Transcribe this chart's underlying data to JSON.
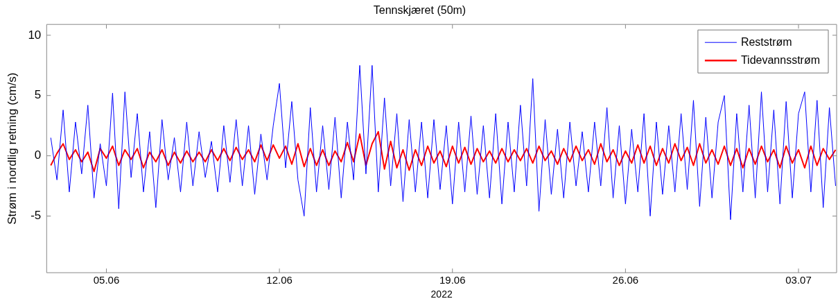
{
  "chart_data": {
    "type": "line",
    "title": "Tennskjæret (50m)",
    "xlabel": "2022",
    "ylabel": "Strøm i nordlig retning (cm/s)",
    "xlim": [
      "2022-06-02T14:00",
      "2022-07-04T13:00"
    ],
    "xticks": [
      {
        "value": "2022-06-05",
        "label": "05.06"
      },
      {
        "value": "2022-06-12",
        "label": "12.06"
      },
      {
        "value": "2022-06-19",
        "label": "19.06"
      },
      {
        "value": "2022-06-26",
        "label": "26.06"
      },
      {
        "value": "2022-07-03",
        "label": "03.07"
      }
    ],
    "ylim": [
      -9.7,
      10.9
    ],
    "yticks": [
      -5,
      0,
      5,
      10
    ],
    "grid": false,
    "legend": "top right",
    "x": [
      "2022-06-02T18:00",
      "2022-06-03T00:00",
      "2022-06-03T06:00",
      "2022-06-03T12:00",
      "2022-06-03T18:00",
      "2022-06-04T00:00",
      "2022-06-04T06:00",
      "2022-06-04T12:00",
      "2022-06-04T18:00",
      "2022-06-05T00:00",
      "2022-06-05T06:00",
      "2022-06-05T12:00",
      "2022-06-05T18:00",
      "2022-06-06T00:00",
      "2022-06-06T06:00",
      "2022-06-06T12:00",
      "2022-06-06T18:00",
      "2022-06-07T00:00",
      "2022-06-07T06:00",
      "2022-06-07T12:00",
      "2022-06-07T18:00",
      "2022-06-08T00:00",
      "2022-06-08T06:00",
      "2022-06-08T12:00",
      "2022-06-08T18:00",
      "2022-06-09T00:00",
      "2022-06-09T06:00",
      "2022-06-09T12:00",
      "2022-06-09T18:00",
      "2022-06-10T00:00",
      "2022-06-10T06:00",
      "2022-06-10T12:00",
      "2022-06-10T18:00",
      "2022-06-11T00:00",
      "2022-06-11T06:00",
      "2022-06-11T12:00",
      "2022-06-11T18:00",
      "2022-06-12T00:00",
      "2022-06-12T06:00",
      "2022-06-12T12:00",
      "2022-06-12T18:00",
      "2022-06-13T00:00",
      "2022-06-13T06:00",
      "2022-06-13T12:00",
      "2022-06-13T18:00",
      "2022-06-14T00:00",
      "2022-06-14T06:00",
      "2022-06-14T12:00",
      "2022-06-14T18:00",
      "2022-06-15T00:00",
      "2022-06-15T06:00",
      "2022-06-15T12:00",
      "2022-06-15T18:00",
      "2022-06-16T00:00",
      "2022-06-16T06:00",
      "2022-06-16T12:00",
      "2022-06-16T18:00",
      "2022-06-17T00:00",
      "2022-06-17T06:00",
      "2022-06-17T12:00",
      "2022-06-17T18:00",
      "2022-06-18T00:00",
      "2022-06-18T06:00",
      "2022-06-18T12:00",
      "2022-06-18T18:00",
      "2022-06-19T00:00",
      "2022-06-19T06:00",
      "2022-06-19T12:00",
      "2022-06-19T18:00",
      "2022-06-20T00:00",
      "2022-06-20T06:00",
      "2022-06-20T12:00",
      "2022-06-20T18:00",
      "2022-06-21T00:00",
      "2022-06-21T06:00",
      "2022-06-21T12:00",
      "2022-06-21T18:00",
      "2022-06-22T00:00",
      "2022-06-22T06:00",
      "2022-06-22T12:00",
      "2022-06-22T18:00",
      "2022-06-23T00:00",
      "2022-06-23T06:00",
      "2022-06-23T12:00",
      "2022-06-23T18:00",
      "2022-06-24T00:00",
      "2022-06-24T06:00",
      "2022-06-24T12:00",
      "2022-06-24T18:00",
      "2022-06-25T00:00",
      "2022-06-25T06:00",
      "2022-06-25T12:00",
      "2022-06-25T18:00",
      "2022-06-26T00:00",
      "2022-06-26T06:00",
      "2022-06-26T12:00",
      "2022-06-26T18:00",
      "2022-06-27T00:00",
      "2022-06-27T06:00",
      "2022-06-27T12:00",
      "2022-06-27T18:00",
      "2022-06-28T00:00",
      "2022-06-28T06:00",
      "2022-06-28T12:00",
      "2022-06-28T18:00",
      "2022-06-29T00:00",
      "2022-06-29T06:00",
      "2022-06-29T12:00",
      "2022-06-29T18:00",
      "2022-06-30T00:00",
      "2022-06-30T06:00",
      "2022-06-30T12:00",
      "2022-06-30T18:00",
      "2022-07-01T00:00",
      "2022-07-01T06:00",
      "2022-07-01T12:00",
      "2022-07-01T18:00",
      "2022-07-02T00:00",
      "2022-07-02T06:00",
      "2022-07-02T12:00",
      "2022-07-02T18:00",
      "2022-07-03T00:00",
      "2022-07-03T06:00",
      "2022-07-03T12:00",
      "2022-07-03T18:00",
      "2022-07-04T00:00",
      "2022-07-04T06:00",
      "2022-07-04T12:00"
    ],
    "series": [
      {
        "name": "Reststrøm",
        "color": "#0000ff",
        "values": [
          1.5,
          -2.0,
          3.8,
          -3.0,
          2.8,
          -1.5,
          4.2,
          -3.5,
          1.0,
          -2.5,
          5.2,
          -4.4,
          5.3,
          -1.8,
          3.5,
          -3.0,
          2.0,
          -4.3,
          3.0,
          -2.0,
          1.5,
          -3.0,
          2.8,
          -2.5,
          2.0,
          -1.8,
          1.2,
          -3.0,
          2.5,
          -2.2,
          3.0,
          -2.5,
          2.5,
          -3.2,
          1.8,
          -2.0,
          2.5,
          6.0,
          -1.0,
          4.5,
          -2.0,
          -5.0,
          4.0,
          -3.0,
          2.5,
          -2.8,
          3.2,
          -3.5,
          2.8,
          -2.0,
          7.5,
          -1.5,
          7.5,
          -3.0,
          4.8,
          -2.5,
          3.5,
          -3.8,
          3.0,
          -3.0,
          2.8,
          -3.5,
          3.0,
          -2.8,
          2.5,
          -4.0,
          2.8,
          -3.0,
          3.3,
          -3.2,
          2.5,
          -3.5,
          3.5,
          -4.0,
          2.8,
          -3.0,
          4.2,
          -2.5,
          6.4,
          -4.6,
          3.0,
          -3.2,
          2.2,
          -3.5,
          2.8,
          -2.5,
          2.0,
          -3.0,
          2.8,
          -2.5,
          4.0,
          -3.5,
          2.5,
          -4.0,
          2.2,
          -3.0,
          3.5,
          -5.0,
          2.8,
          -3.2,
          2.5,
          -3.0,
          3.5,
          -2.8,
          4.6,
          -4.2,
          3.2,
          -3.5,
          2.8,
          5.0,
          -5.3,
          3.5,
          -3.0,
          4.2,
          -3.5,
          5.3,
          -3.0,
          3.8,
          -4.0,
          4.5,
          -3.5,
          3.5,
          5.3,
          -3.0,
          4.6,
          -4.3,
          4.0,
          -2.5
        ]
      },
      {
        "name": "Tidevannsstrøm",
        "color": "#ff0000",
        "values": [
          -0.8,
          0.2,
          1.0,
          -0.3,
          0.5,
          -0.5,
          0.3,
          -1.3,
          0.6,
          -0.2,
          0.8,
          -0.8,
          0.5,
          -0.3,
          0.6,
          -1.0,
          0.3,
          -0.5,
          0.5,
          -0.8,
          0.3,
          -0.6,
          0.4,
          -0.5,
          0.3,
          -0.5,
          0.5,
          -0.4,
          0.6,
          -0.4,
          0.7,
          -0.3,
          0.5,
          -0.5,
          0.9,
          -0.4,
          0.9,
          -0.2,
          0.8,
          -0.7,
          1.0,
          -0.9,
          0.6,
          -0.8,
          0.5,
          -0.8,
          0.4,
          -0.5,
          1.1,
          -0.5,
          1.8,
          -0.8,
          1.0,
          2.0,
          -1.1,
          1.2,
          -1.0,
          0.5,
          -1.2,
          0.5,
          -0.8,
          0.8,
          -0.6,
          0.4,
          -0.9,
          0.8,
          -0.6,
          0.7,
          -0.7,
          0.6,
          -0.5,
          0.4,
          -0.6,
          0.6,
          -0.5,
          0.5,
          -0.4,
          0.6,
          -0.6,
          0.8,
          -0.4,
          0.4,
          -0.7,
          0.6,
          -0.5,
          0.8,
          -0.4,
          0.5,
          -0.7,
          1.0,
          -0.5,
          0.5,
          -0.8,
          0.4,
          -0.6,
          0.9,
          -0.6,
          0.8,
          -0.8,
          0.6,
          -0.6,
          1.0,
          -0.4,
          0.7,
          -0.8,
          1.0,
          -0.6,
          0.5,
          -0.7,
          0.8,
          -0.8,
          0.6,
          -1.0,
          0.6,
          -0.7,
          0.8,
          -0.5,
          0.5,
          -1.0,
          0.8,
          -0.6,
          0.5,
          -1.0,
          0.8,
          -0.8,
          0.6,
          -0.3,
          0.5
        ]
      }
    ]
  }
}
